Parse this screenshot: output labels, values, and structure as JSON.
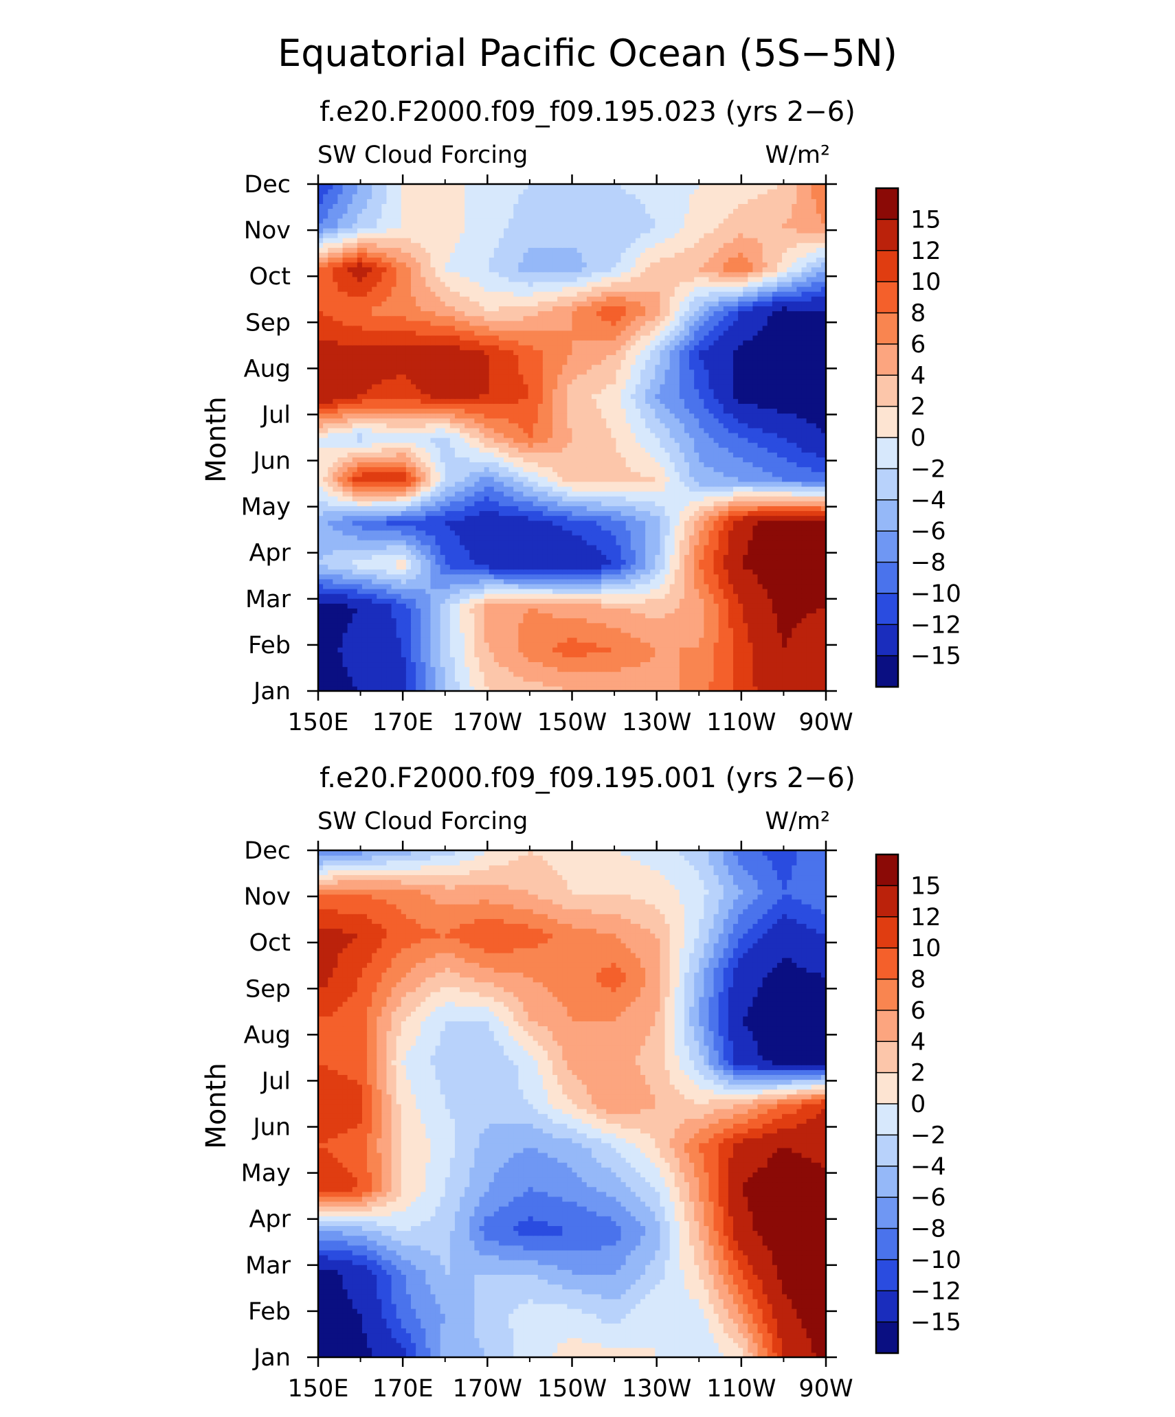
{
  "title": "Equatorial Pacific Ocean (5S−5N)",
  "colors": {
    "positive": [
      "#fde4d2",
      "#fcc6aa",
      "#fca57f",
      "#f98550",
      "#f4602b",
      "#e03d11",
      "#bb220b",
      "#8b0a06"
    ],
    "negative": [
      "#d7e8fc",
      "#b8d2fb",
      "#95b8f8",
      "#6f97f3",
      "#4a73ec",
      "#2a4ce0",
      "#1a2dbd",
      "#0a0f82"
    ]
  },
  "chart_data": [
    {
      "type": "heatmap",
      "subtitle": "f.e20.F2000.f09_f09.195.023 (yrs 2−6)",
      "variable_label": "SW Cloud Forcing",
      "units_label": "W/m²",
      "ylabel": "Month",
      "x_ticks": [
        "150E",
        "170E",
        "170W",
        "150W",
        "130W",
        "110W",
        "90W"
      ],
      "y_ticks": [
        "Jan",
        "Feb",
        "Mar",
        "Apr",
        "May",
        "Jun",
        "Jul",
        "Aug",
        "Sep",
        "Oct",
        "Nov",
        "Dec"
      ],
      "colorbar_labels": [
        "15",
        "12",
        "10",
        "8",
        "6",
        "4",
        "2",
        "0",
        "−2",
        "−4",
        "−6",
        "−8",
        "−10",
        "−12",
        "−15"
      ],
      "levels": [
        -15,
        -12,
        -10,
        -8,
        -6,
        -4,
        -2,
        0,
        2,
        4,
        6,
        8,
        10,
        12,
        15
      ],
      "grid_x_lon": [
        150,
        160,
        170,
        180,
        190,
        200,
        210,
        220,
        230,
        240,
        250,
        260,
        270
      ],
      "grid_y": [
        "Jan",
        "Feb",
        "Mar",
        "Apr",
        "May",
        "Jun",
        "Jul",
        "Aug",
        "Sep",
        "Oct",
        "Nov",
        "Dec",
        "Dec-end"
      ],
      "z": [
        [
          -16,
          -15,
          -13,
          -4,
          2,
          3,
          4,
          4,
          5,
          7,
          11,
          14,
          12
        ],
        [
          -16,
          -14,
          -12,
          -3,
          4,
          7,
          9,
          8,
          6,
          6,
          11,
          15,
          12
        ],
        [
          -16,
          -15,
          -11,
          -3,
          5,
          6,
          5,
          4,
          3,
          5,
          12,
          16,
          15
        ],
        [
          -4,
          -1,
          1,
          -10,
          -13,
          -15,
          -15,
          -12,
          -4,
          8,
          15,
          17,
          16
        ],
        [
          -5,
          -9,
          -11,
          -12,
          -14,
          -13,
          -11,
          -9,
          -5,
          5,
          14,
          17,
          16
        ],
        [
          0,
          12,
          12,
          -2,
          -7,
          -2,
          3,
          3,
          2,
          -5,
          -6,
          -8,
          -9
        ],
        [
          0,
          -3,
          -1,
          -3,
          4,
          8,
          4,
          2,
          -2,
          -7,
          -10,
          -12,
          -15
        ],
        [
          15,
          12,
          11,
          13,
          12,
          10,
          3,
          1,
          -6,
          -10,
          -16,
          -17,
          -17
        ],
        [
          13,
          13,
          13,
          14,
          12,
          9,
          6,
          4,
          -3,
          -12,
          -16,
          -17,
          -17
        ],
        [
          10,
          8,
          7,
          5,
          2,
          3,
          6,
          10,
          5,
          -5,
          -12,
          -16,
          -15
        ],
        [
          8,
          14,
          7,
          0,
          -2,
          -5,
          -5,
          -2,
          3,
          4,
          8,
          1,
          -6
        ],
        [
          -8,
          -3,
          0,
          1,
          -1,
          -3,
          -3,
          -4,
          -2,
          1,
          3,
          4,
          6
        ],
        [
          -12,
          -6,
          0,
          1,
          -1,
          -2,
          -2,
          -2,
          -1,
          0,
          1,
          2,
          8
        ]
      ]
    },
    {
      "type": "heatmap",
      "subtitle": "f.e20.F2000.f09_f09.195.001 (yrs 2−6)",
      "variable_label": "SW Cloud Forcing",
      "units_label": "W/m²",
      "ylabel": "Month",
      "x_ticks": [
        "150E",
        "170E",
        "170W",
        "150W",
        "130W",
        "110W",
        "90W"
      ],
      "y_ticks": [
        "Jan",
        "Feb",
        "Mar",
        "Apr",
        "May",
        "Jun",
        "Jul",
        "Aug",
        "Sep",
        "Oct",
        "Nov",
        "Dec"
      ],
      "colorbar_labels": [
        "15",
        "12",
        "10",
        "8",
        "6",
        "4",
        "2",
        "0",
        "−2",
        "−4",
        "−6",
        "−8",
        "−10",
        "−12",
        "−15"
      ],
      "levels": [
        -15,
        -12,
        -10,
        -8,
        -6,
        -4,
        -2,
        0,
        2,
        4,
        6,
        8,
        10,
        12,
        15
      ],
      "grid_x_lon": [
        150,
        160,
        170,
        180,
        190,
        200,
        210,
        220,
        230,
        240,
        250,
        260,
        270
      ],
      "grid_y": [
        "Jan",
        "Feb",
        "Mar",
        "Apr",
        "May",
        "Jun",
        "Jul",
        "Aug",
        "Sep",
        "Oct",
        "Nov",
        "Dec",
        "Dec-end"
      ],
      "z": [
        [
          -16,
          -16,
          -13,
          -5,
          -4,
          -1,
          1,
          1,
          0,
          -2,
          1,
          12,
          16
        ],
        [
          -16,
          -15,
          -9,
          -6,
          -3,
          -1,
          -1,
          -3,
          0,
          -1,
          6,
          14,
          17
        ],
        [
          -16,
          -14,
          -8,
          -4,
          -4,
          -4,
          -6,
          -6,
          -3,
          2,
          10,
          16,
          17
        ],
        [
          -6,
          -5,
          -2,
          -3,
          -9,
          -11,
          -10,
          -9,
          -5,
          4,
          14,
          17,
          16
        ],
        [
          12,
          10,
          2,
          -2,
          -6,
          -8,
          -7,
          -5,
          -2,
          6,
          15,
          17,
          16
        ],
        [
          10,
          9,
          2,
          -1,
          -5,
          -6,
          -5,
          -2,
          2,
          8,
          13,
          15,
          14
        ],
        [
          12,
          11,
          1,
          -2,
          -3,
          -2,
          2,
          6,
          4,
          2,
          4,
          8,
          12
        ],
        [
          10,
          9,
          0,
          -3,
          -4,
          -1,
          5,
          5,
          3,
          -3,
          -14,
          -16,
          -16
        ],
        [
          10,
          9,
          2,
          -2,
          -2,
          4,
          6,
          6,
          4,
          -6,
          -15,
          -16,
          -16
        ],
        [
          13,
          10,
          6,
          3,
          5,
          6,
          7,
          9,
          5,
          -5,
          -14,
          -16,
          -15
        ],
        [
          13,
          12,
          9,
          8,
          10,
          9,
          7,
          6,
          4,
          -2,
          -10,
          -14,
          -12
        ],
        [
          8,
          8,
          7,
          5,
          5,
          4,
          2,
          2,
          1,
          -1,
          -6,
          -10,
          -8
        ],
        [
          -9,
          -7,
          -5,
          -3,
          0,
          2,
          1,
          0,
          -1,
          -3,
          -9,
          -11,
          -8
        ]
      ]
    }
  ]
}
